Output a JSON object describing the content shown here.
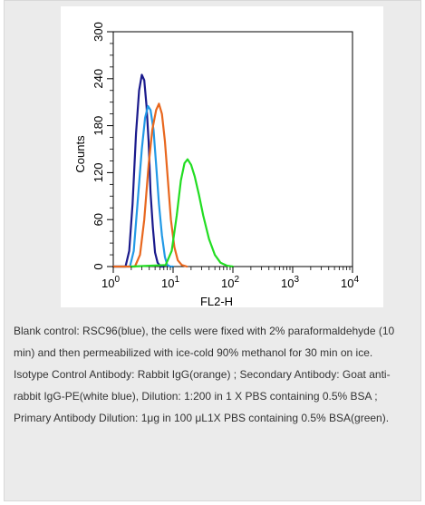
{
  "chart_data": {
    "type": "line",
    "title": "",
    "xlabel": "FL2-H",
    "ylabel": "Counts",
    "x_scale": "log",
    "xlim": [
      1,
      10000
    ],
    "ylim": [
      0,
      300
    ],
    "x_ticks": [
      {
        "value": 1,
        "base": "10",
        "exp": "0"
      },
      {
        "value": 10,
        "base": "10",
        "exp": "1"
      },
      {
        "value": 100,
        "base": "10",
        "exp": "2"
      },
      {
        "value": 1000,
        "base": "10",
        "exp": "3"
      },
      {
        "value": 10000,
        "base": "10",
        "exp": "4"
      }
    ],
    "y_ticks": [
      "0",
      "60",
      "120",
      "180",
      "240",
      "300"
    ],
    "grid": false,
    "series": [
      {
        "color": "#1a1a8c",
        "x": [
          1.0,
          1.6,
          1.85,
          2.1,
          2.4,
          2.7,
          3.0,
          3.3,
          3.6,
          3.9,
          4.2,
          4.6,
          5.0,
          5.5,
          6.2,
          7.0
        ],
        "y": [
          0,
          0,
          20,
          80,
          170,
          225,
          245,
          238,
          205,
          160,
          95,
          50,
          18,
          5,
          0,
          0
        ]
      },
      {
        "color": "#2299e6",
        "x": [
          1.0,
          1.9,
          2.2,
          2.6,
          3.0,
          3.4,
          3.8,
          4.2,
          4.7,
          5.2,
          5.8,
          6.5,
          7.3,
          8.0,
          9.0,
          10.0
        ],
        "y": [
          0,
          0,
          20,
          90,
          150,
          190,
          205,
          200,
          175,
          130,
          80,
          40,
          12,
          2,
          0,
          0
        ]
      },
      {
        "color": "#e8671e",
        "x": [
          1.0,
          2.3,
          2.8,
          3.3,
          3.9,
          4.5,
          5.2,
          5.8,
          6.5,
          7.3,
          8.2,
          9.2,
          10.5,
          12.0,
          14.0,
          17.0
        ],
        "y": [
          0,
          0,
          15,
          60,
          130,
          175,
          200,
          208,
          195,
          160,
          110,
          60,
          25,
          8,
          2,
          0
        ]
      },
      {
        "color": "#22dd22",
        "x": [
          2.0,
          7.5,
          9.5,
          11.5,
          13.5,
          15.5,
          17.5,
          20.0,
          23.0,
          27.0,
          32.0,
          40.0,
          50.0,
          62.0,
          80.0,
          100.0
        ],
        "y": [
          0,
          2,
          20,
          65,
          110,
          132,
          137,
          130,
          115,
          92,
          65,
          35,
          15,
          5,
          1,
          0
        ]
      }
    ]
  },
  "caption": {
    "line1": "Blank control: RSC96(blue), the cells were fixed with 2% paraformaldehyde (10 min) and then permeabilized with ice-cold 90% methanol for 30 min on ice.",
    "line2": "Isotype Control Antibody: Rabbit IgG(orange) ; Secondary Antibody: Goat anti-rabbit IgG-PE(white blue), Dilution: 1:200 in 1 X PBS containing 0.5% BSA ; Primary Antibody Dilution: 1μg in 100 μL1X PBS containing 0.5% BSA(green)."
  }
}
